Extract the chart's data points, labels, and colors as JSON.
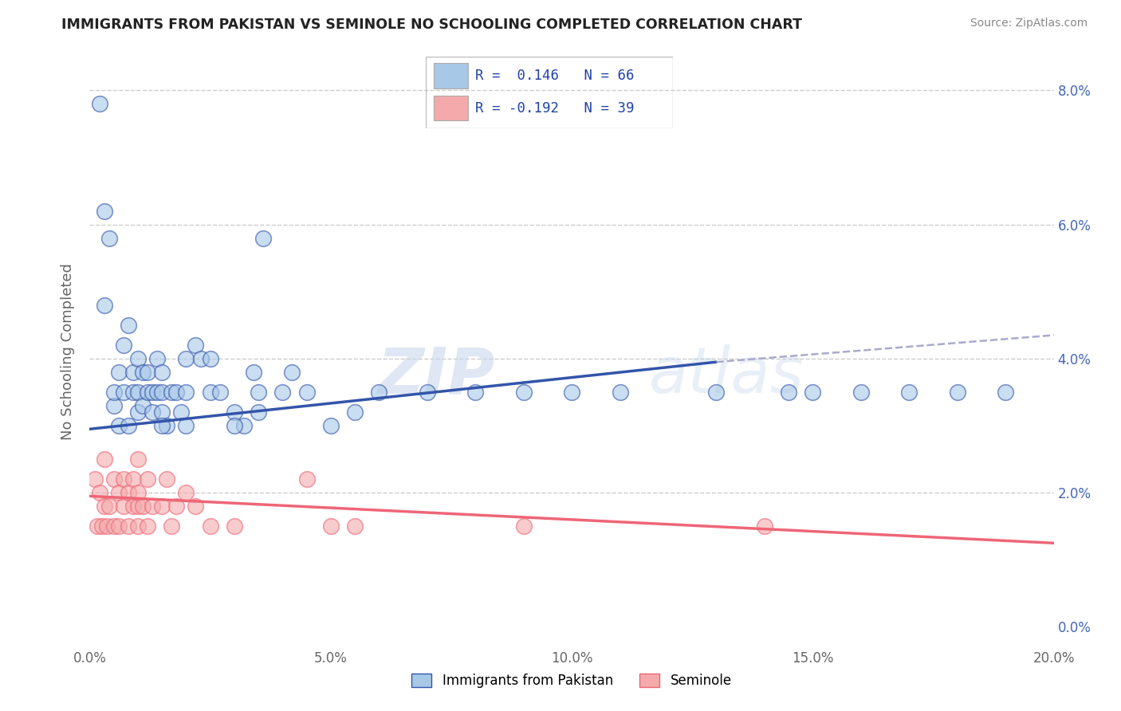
{
  "title": "IMMIGRANTS FROM PAKISTAN VS SEMINOLE NO SCHOOLING COMPLETED CORRELATION CHART",
  "source": "Source: ZipAtlas.com",
  "xlabel_ticks": [
    "0.0%",
    "5.0%",
    "10.0%",
    "15.0%",
    "20.0%"
  ],
  "xlabel_vals": [
    0.0,
    5.0,
    10.0,
    15.0,
    20.0
  ],
  "ylabel_ticks": [
    "0.0%",
    "2.0%",
    "4.0%",
    "6.0%",
    "8.0%"
  ],
  "ylabel_vals": [
    0.0,
    2.0,
    4.0,
    6.0,
    8.0
  ],
  "xlim": [
    0,
    20
  ],
  "ylim": [
    -0.3,
    8.5
  ],
  "ylabel": "No Schooling Completed",
  "legend_label1": "Immigrants from Pakistan",
  "legend_label2": "Seminole",
  "r1": 0.146,
  "n1": 66,
  "r2": -0.192,
  "n2": 39,
  "color_blue": "#A8C8E8",
  "color_pink": "#F4AAAA",
  "color_blue_line": "#3355AA",
  "color_pink_line": "#EE6677",
  "color_gray_dash": "#AAAACC",
  "watermark_zip": "ZIP",
  "watermark_atlas": "atlas",
  "blue_x": [
    0.2,
    0.3,
    0.3,
    0.4,
    0.5,
    0.5,
    0.6,
    0.6,
    0.7,
    0.7,
    0.8,
    0.8,
    0.9,
    0.9,
    1.0,
    1.0,
    1.0,
    1.1,
    1.1,
    1.2,
    1.2,
    1.3,
    1.3,
    1.4,
    1.4,
    1.5,
    1.5,
    1.5,
    1.6,
    1.7,
    1.8,
    1.9,
    2.0,
    2.0,
    2.2,
    2.3,
    2.5,
    2.5,
    2.7,
    3.0,
    3.2,
    3.4,
    3.5,
    3.5,
    3.6,
    4.0,
    4.2,
    4.5,
    5.0,
    5.5,
    6.0,
    7.0,
    8.0,
    9.0,
    10.0,
    11.0,
    13.0,
    14.5,
    15.0,
    16.0,
    17.0,
    18.0,
    19.0,
    1.5,
    2.0,
    3.0
  ],
  "blue_y": [
    7.8,
    6.2,
    4.8,
    5.8,
    3.3,
    3.5,
    3.0,
    3.8,
    3.5,
    4.2,
    3.0,
    4.5,
    3.5,
    3.8,
    3.2,
    3.5,
    4.0,
    3.3,
    3.8,
    3.5,
    3.8,
    3.2,
    3.5,
    3.5,
    4.0,
    3.2,
    3.5,
    3.8,
    3.0,
    3.5,
    3.5,
    3.2,
    3.5,
    4.0,
    4.2,
    4.0,
    3.5,
    4.0,
    3.5,
    3.2,
    3.0,
    3.8,
    3.5,
    3.2,
    5.8,
    3.5,
    3.8,
    3.5,
    3.0,
    3.2,
    3.5,
    3.5,
    3.5,
    3.5,
    3.5,
    3.5,
    3.5,
    3.5,
    3.5,
    3.5,
    3.5,
    3.5,
    3.5,
    3.0,
    3.0,
    3.0
  ],
  "pink_x": [
    0.1,
    0.15,
    0.2,
    0.25,
    0.3,
    0.3,
    0.35,
    0.4,
    0.5,
    0.5,
    0.6,
    0.6,
    0.7,
    0.7,
    0.8,
    0.8,
    0.9,
    0.9,
    1.0,
    1.0,
    1.0,
    1.0,
    1.1,
    1.2,
    1.2,
    1.3,
    1.5,
    1.6,
    1.7,
    1.8,
    2.0,
    2.2,
    2.5,
    3.0,
    4.5,
    5.0,
    5.5,
    9.0,
    14.0
  ],
  "pink_y": [
    2.2,
    1.5,
    2.0,
    1.5,
    1.8,
    2.5,
    1.5,
    1.8,
    1.5,
    2.2,
    1.5,
    2.0,
    1.8,
    2.2,
    1.5,
    2.0,
    1.8,
    2.2,
    1.5,
    1.8,
    2.0,
    2.5,
    1.8,
    1.5,
    2.2,
    1.8,
    1.8,
    2.2,
    1.5,
    1.8,
    2.0,
    1.8,
    1.5,
    1.5,
    2.2,
    1.5,
    1.5,
    1.5,
    1.5
  ]
}
